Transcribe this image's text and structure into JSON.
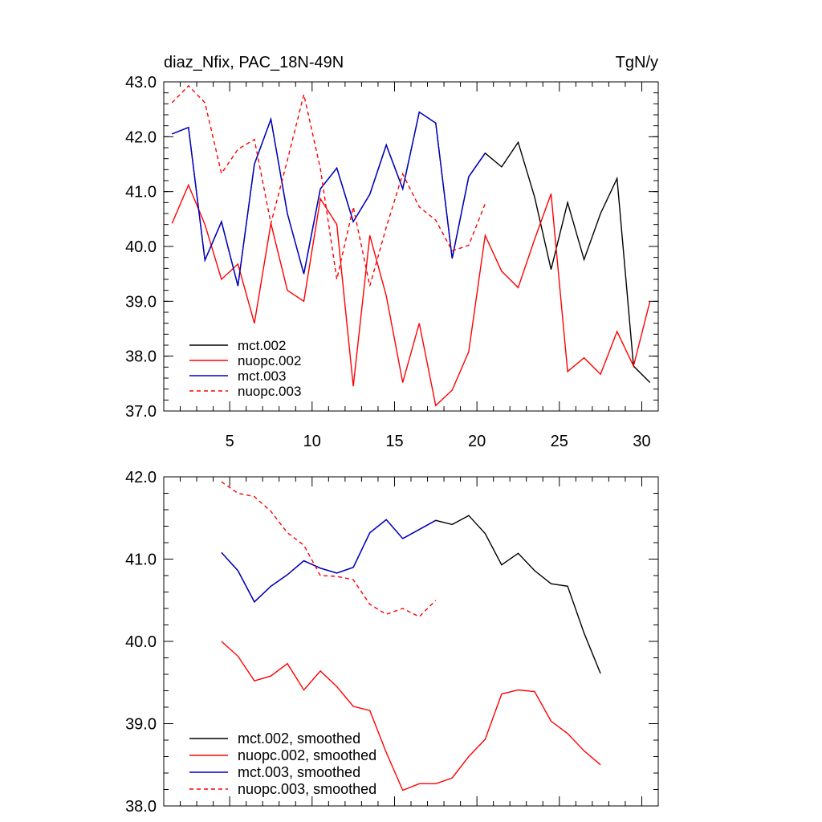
{
  "colors": {
    "black": "#000000",
    "red": "#ff0000",
    "blue": "#0000cc"
  },
  "chart_data": [
    {
      "type": "line",
      "title_left": "diaz_Nfix, PAC_18N-49N",
      "title_right": "TgN/y",
      "xlabel": "",
      "ylabel": "",
      "xlim": [
        1,
        31
      ],
      "ylim": [
        37.0,
        43.0
      ],
      "x_ticks": [
        5,
        10,
        15,
        20,
        25,
        30
      ],
      "x_tick_labels": [
        "5",
        "10",
        "15",
        "20",
        "25",
        "30"
      ],
      "y_ticks": [
        37.0,
        38.0,
        39.0,
        40.0,
        41.0,
        42.0,
        43.0
      ],
      "y_tick_labels": [
        "37.0",
        "38.0",
        "39.0",
        "40.0",
        "41.0",
        "42.0",
        "43.0"
      ],
      "legend_position": "lower-left",
      "series": [
        {
          "name": "mct.002",
          "color": "#000000",
          "dash": "solid",
          "x": [
            1.5,
            2.5,
            3.5,
            4.5,
            5.5,
            6.5,
            7.5,
            8.5,
            9.5,
            10.5,
            11.5,
            12.5,
            13.5,
            14.5,
            15.5,
            16.5,
            17.5,
            18.5,
            19.5,
            20.5,
            21.5,
            22.5,
            23.5,
            24.5,
            25.5,
            26.5,
            27.5,
            28.5,
            29.5,
            30.5
          ],
          "y": [
            42.05,
            42.17,
            39.75,
            40.45,
            39.28,
            41.5,
            42.32,
            40.6,
            39.5,
            41.05,
            41.43,
            40.45,
            40.95,
            41.85,
            41.05,
            42.45,
            42.25,
            39.78,
            41.27,
            41.7,
            41.45,
            41.9,
            40.9,
            39.58,
            40.8,
            39.76,
            40.6,
            41.24,
            37.82,
            37.52
          ]
        },
        {
          "name": "nuopc.002",
          "color": "#ff0000",
          "dash": "solid",
          "x": [
            1.5,
            2.5,
            3.5,
            4.5,
            5.5,
            6.5,
            7.5,
            8.5,
            9.5,
            10.5,
            11.5,
            12.5,
            13.5,
            14.5,
            15.5,
            16.5,
            17.5,
            18.5,
            19.5,
            20.5,
            21.5,
            22.5,
            23.5,
            24.5,
            25.5,
            26.5,
            27.5,
            28.5,
            29.5,
            30.5
          ],
          "y": [
            40.42,
            41.12,
            40.4,
            39.4,
            39.68,
            38.6,
            40.42,
            39.2,
            39.0,
            40.87,
            40.4,
            37.45,
            40.2,
            39.1,
            37.52,
            38.6,
            37.1,
            37.38,
            38.08,
            40.2,
            39.55,
            39.25,
            40.13,
            40.96,
            37.72,
            37.97,
            37.67,
            38.45,
            37.82,
            39.0
          ]
        },
        {
          "name": "mct.003",
          "color": "#0000cc",
          "dash": "solid",
          "x": [
            1.5,
            2.5,
            3.5,
            4.5,
            5.5,
            6.5,
            7.5,
            8.5,
            9.5,
            10.5,
            11.5,
            12.5,
            13.5,
            14.5,
            15.5,
            16.5,
            17.5,
            18.5,
            19.5,
            20.5
          ],
          "y": [
            42.05,
            42.17,
            39.75,
            40.45,
            39.28,
            41.5,
            42.32,
            40.6,
            39.5,
            41.05,
            41.43,
            40.45,
            40.95,
            41.85,
            41.05,
            42.45,
            42.25,
            39.78,
            41.27,
            41.7
          ]
        },
        {
          "name": "nuopc.003",
          "color": "#ff0000",
          "dash": "dashed",
          "x": [
            1.5,
            2.5,
            3.5,
            4.5,
            5.5,
            6.5,
            7.5,
            8.5,
            9.5,
            10.5,
            11.5,
            12.5,
            13.5,
            14.5,
            15.5,
            16.5,
            17.5,
            18.5,
            19.5,
            20.5
          ],
          "y": [
            42.62,
            42.93,
            42.62,
            41.33,
            41.77,
            41.95,
            40.42,
            41.57,
            42.77,
            41.42,
            39.4,
            40.72,
            39.28,
            40.35,
            41.32,
            40.72,
            40.48,
            39.92,
            40.02,
            40.78
          ]
        }
      ]
    },
    {
      "type": "line",
      "xlabel": "",
      "ylabel": "",
      "xlim": [
        1,
        31
      ],
      "ylim": [
        38.0,
        42.0
      ],
      "x_ticks": [
        5,
        10,
        15,
        20,
        25,
        30
      ],
      "x_tick_labels": [
        "",
        "",
        "",
        "",
        "",
        ""
      ],
      "y_ticks": [
        38.0,
        39.0,
        40.0,
        41.0,
        42.0
      ],
      "y_tick_labels": [
        "38.0",
        "39.0",
        "40.0",
        "41.0",
        "42.0"
      ],
      "legend_position": "lower-left",
      "series": [
        {
          "name": "mct.002, smoothed",
          "color": "#000000",
          "dash": "solid",
          "x": [
            4.5,
            5.5,
            6.5,
            7.5,
            8.5,
            9.5,
            10.5,
            11.5,
            12.5,
            13.5,
            14.5,
            15.5,
            16.5,
            17.5,
            18.5,
            19.5,
            20.5,
            21.5,
            22.5,
            23.5,
            24.5,
            25.5,
            26.5,
            27.5
          ],
          "y": [
            41.08,
            40.86,
            40.48,
            40.67,
            40.81,
            40.98,
            40.89,
            40.83,
            40.9,
            41.32,
            41.48,
            41.25,
            41.36,
            41.47,
            41.42,
            41.53,
            41.31,
            40.93,
            41.07,
            40.86,
            40.7,
            40.67,
            40.1,
            39.61
          ]
        },
        {
          "name": "nuopc.002, smoothed",
          "color": "#ff0000",
          "dash": "solid",
          "x": [
            4.5,
            5.5,
            6.5,
            7.5,
            8.5,
            9.5,
            10.5,
            11.5,
            12.5,
            13.5,
            14.5,
            15.5,
            16.5,
            17.5,
            18.5,
            19.5,
            20.5,
            21.5,
            22.5,
            23.5,
            24.5,
            25.5,
            26.5,
            27.5
          ],
          "y": [
            40.0,
            39.82,
            39.52,
            39.58,
            39.73,
            39.41,
            39.64,
            39.45,
            39.21,
            39.16,
            38.65,
            38.19,
            38.27,
            38.27,
            38.34,
            38.6,
            38.81,
            39.36,
            39.41,
            39.39,
            39.03,
            38.88,
            38.67,
            38.5
          ]
        },
        {
          "name": "mct.003, smoothed",
          "color": "#0000cc",
          "dash": "solid",
          "x": [
            4.5,
            5.5,
            6.5,
            7.5,
            8.5,
            9.5,
            10.5,
            11.5,
            12.5,
            13.5,
            14.5,
            15.5,
            16.5,
            17.5
          ],
          "y": [
            41.08,
            40.86,
            40.48,
            40.67,
            40.81,
            40.98,
            40.89,
            40.83,
            40.9,
            41.32,
            41.48,
            41.25,
            41.36,
            41.47
          ]
        },
        {
          "name": "nuopc.003, smoothed",
          "color": "#ff0000",
          "dash": "dashed",
          "x": [
            4.5,
            5.5,
            6.5,
            7.5,
            8.5,
            9.5,
            10.5,
            11.5,
            12.5,
            13.5,
            14.5,
            15.5,
            16.5,
            17.5
          ],
          "y": [
            41.94,
            41.8,
            41.76,
            41.58,
            41.32,
            41.17,
            40.8,
            40.79,
            40.75,
            40.45,
            40.33,
            40.4,
            40.3,
            40.5
          ]
        }
      ]
    }
  ]
}
